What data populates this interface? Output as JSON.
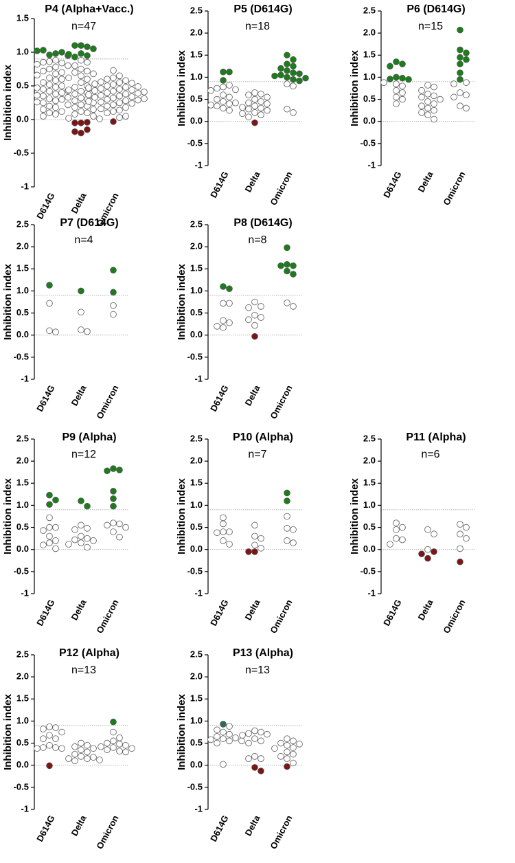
{
  "chart_data": [
    {
      "type": "strip",
      "title": "P4 (Alpha+Vacc.)",
      "subtitle": "n=47",
      "ylabel": "Inhibition index",
      "categories": [
        "D614G",
        "Delta",
        "Omicron"
      ],
      "values": [
        [
          0.96,
          0.98,
          1.03,
          1.0,
          1.02,
          0.95,
          0.88,
          0.86,
          0.85,
          0.84,
          0.82,
          0.8,
          0.78,
          0.75,
          0.72,
          0.7,
          0.68,
          0.66,
          0.62,
          0.58,
          0.55,
          0.52,
          0.5,
          0.48,
          0.47,
          0.45,
          0.43,
          0.42,
          0.4,
          0.38,
          0.36,
          0.35,
          0.33,
          0.31,
          0.3,
          0.28,
          0.26,
          0.25,
          0.22,
          0.2,
          0.18,
          0.15,
          0.12,
          0.1,
          0.08,
          0.05,
          0.6
        ],
        [
          1.1,
          1.08,
          1.1,
          1.05,
          0.98,
          0.95,
          0.93,
          0.97,
          -0.05,
          -0.04,
          -0.05,
          -0.2,
          -0.15,
          -0.18,
          0.88,
          0.85,
          0.8,
          0.75,
          0.72,
          0.7,
          0.68,
          0.65,
          0.6,
          0.55,
          0.5,
          0.48,
          0.46,
          0.42,
          0.4,
          0.38,
          0.35,
          0.32,
          0.3,
          0.28,
          0.25,
          0.22,
          0.2,
          0.18,
          0.15,
          0.12,
          0.1,
          0.08,
          0.05,
          0.02,
          0.01,
          0.62,
          0.44
        ],
        [
          -0.03,
          0.73,
          0.65,
          0.62,
          0.6,
          0.58,
          0.56,
          0.55,
          0.54,
          0.53,
          0.52,
          0.5,
          0.49,
          0.48,
          0.47,
          0.46,
          0.45,
          0.44,
          0.43,
          0.42,
          0.41,
          0.4,
          0.39,
          0.38,
          0.37,
          0.36,
          0.35,
          0.34,
          0.33,
          0.32,
          0.31,
          0.3,
          0.29,
          0.28,
          0.27,
          0.26,
          0.25,
          0.24,
          0.22,
          0.2,
          0.18,
          0.16,
          0.14,
          0.12,
          0.1,
          0.05,
          0.03
        ]
      ],
      "ylim": [
        -1,
        1.5
      ],
      "yticks": [
        -1.0,
        -0.5,
        {
          "value": 0,
          "label": "0.0"
        },
        0.5,
        {
          "value": 1,
          "label": "1.0"
        },
        1.5
      ],
      "threshold_high": 0.9,
      "threshold_low": 0,
      "colors": {
        "high": "#1b7d1b",
        "low": "#7d1416",
        "other": "#ffffff"
      }
    },
    {
      "type": "strip",
      "title": "P5 (D614G)",
      "subtitle": "n=18",
      "ylabel": "Inhibition index",
      "categories": [
        "D614G",
        "Delta",
        "Omicron"
      ],
      "values": [
        [
          1.12,
          1.12,
          0.93,
          0.82,
          0.78,
          0.75,
          0.72,
          0.7,
          0.6,
          0.55,
          0.5,
          0.45,
          0.42,
          0.4,
          0.37,
          0.35,
          0.3,
          0.25
        ],
        [
          -0.03,
          0.65,
          0.62,
          0.6,
          0.55,
          0.5,
          0.45,
          0.42,
          0.4,
          0.35,
          0.32,
          0.3,
          0.28,
          0.25,
          0.2,
          0.18,
          0.15,
          0.1
        ],
        [
          1.5,
          1.4,
          1.3,
          1.25,
          1.2,
          1.15,
          1.1,
          1.08,
          1.05,
          1.03,
          1.0,
          0.98,
          0.95,
          0.92,
          0.85,
          0.8,
          0.28,
          0.2
        ]
      ],
      "ylim": [
        -1,
        2.5
      ],
      "yticks": [
        -1.0,
        -0.5,
        {
          "value": 0,
          "label": "0.0"
        },
        0.5,
        {
          "value": 1,
          "label": "1.0"
        },
        1.5,
        {
          "value": 2,
          "label": "2.0"
        },
        2.5
      ],
      "threshold_high": 0.9,
      "threshold_low": 0,
      "colors": {
        "high": "#1b7d1b",
        "low": "#7d1416",
        "other": "#ffffff"
      }
    },
    {
      "type": "strip",
      "title": "P6 (D614G)",
      "subtitle": "n=15",
      "ylabel": "Inhibition index",
      "categories": [
        "D614G",
        "Delta",
        "Omicron"
      ],
      "values": [
        [
          1.35,
          1.3,
          1.25,
          1.0,
          0.98,
          0.96,
          0.95,
          0.88,
          0.85,
          0.8,
          0.7,
          0.65,
          0.55,
          0.5,
          0.4
        ],
        [
          0.82,
          0.78,
          0.7,
          0.62,
          0.58,
          0.55,
          0.5,
          0.45,
          0.4,
          0.35,
          0.3,
          0.25,
          0.2,
          0.15,
          0.05
        ],
        [
          2.07,
          1.62,
          1.55,
          1.45,
          1.4,
          1.3,
          1.1,
          0.95,
          0.88,
          0.65,
          0.6,
          0.55,
          0.35,
          0.3,
          0.85
        ]
      ],
      "ylim": [
        -1,
        2.5
      ],
      "yticks": [
        -1.0,
        -0.5,
        {
          "value": 0,
          "label": "0.0"
        },
        0.5,
        {
          "value": 1,
          "label": "1.0"
        },
        1.5,
        {
          "value": 2,
          "label": "2.0"
        },
        2.5
      ],
      "threshold_high": 0.9,
      "threshold_low": 0,
      "colors": {
        "high": "#1b7d1b",
        "low": "#7d1416",
        "other": "#ffffff"
      }
    },
    {
      "type": "strip",
      "title": "P7 (D614G)",
      "subtitle": "n=4",
      "ylabel": "Inhibition index",
      "categories": [
        "D614G",
        "Delta",
        "Omicron"
      ],
      "values": [
        [
          1.13,
          0.72,
          0.1,
          0.07
        ],
        [
          1.0,
          0.52,
          0.12,
          0.08
        ],
        [
          1.47,
          0.97,
          0.67,
          0.47
        ]
      ],
      "ylim": [
        -1,
        2.5
      ],
      "yticks": [
        -1.0,
        -0.5,
        {
          "value": 0,
          "label": "0.0"
        },
        0.5,
        {
          "value": 1,
          "label": "1.0"
        },
        1.5,
        {
          "value": 2,
          "label": "2.0"
        },
        2.5
      ],
      "threshold_high": 0.9,
      "threshold_low": 0,
      "colors": {
        "high": "#1b7d1b",
        "low": "#7d1416",
        "other": "#ffffff"
      }
    },
    {
      "type": "strip",
      "title": "P8 (D614G)",
      "subtitle": "n=8",
      "ylabel": "Inhibition index",
      "categories": [
        "D614G",
        "Delta",
        "Omicron"
      ],
      "values": [
        [
          1.1,
          1.05,
          0.72,
          0.72,
          0.33,
          0.28,
          0.2,
          0.17
        ],
        [
          0.75,
          0.65,
          0.62,
          0.45,
          0.4,
          0.35,
          0.22,
          -0.03
        ],
        [
          1.98,
          1.6,
          1.57,
          1.57,
          1.45,
          1.38,
          0.73,
          0.65
        ]
      ],
      "ylim": [
        -1,
        2.5
      ],
      "yticks": [
        -1.0,
        -0.5,
        {
          "value": 0,
          "label": "0.0"
        },
        0.5,
        {
          "value": 1,
          "label": "1.0"
        },
        1.5,
        {
          "value": 2,
          "label": "2.0"
        },
        2.5
      ],
      "threshold_high": 0.9,
      "threshold_low": 0,
      "colors": {
        "high": "#1b7d1b",
        "low": "#7d1416",
        "other": "#ffffff"
      }
    },
    {
      "type": "strip",
      "title": "P9 (Alpha)",
      "subtitle": "n=12",
      "ylabel": "Inhibition index",
      "categories": [
        "D614G",
        "Delta",
        "Omicron"
      ],
      "values": [
        [
          1.23,
          1.12,
          1.02,
          0.72,
          0.5,
          0.5,
          0.43,
          0.3,
          0.2,
          0.15,
          0.1,
          0.02
        ],
        [
          1.1,
          0.98,
          0.55,
          0.48,
          0.45,
          0.3,
          0.25,
          0.22,
          0.2,
          0.15,
          0.12,
          0.05
        ],
        [
          1.83,
          1.8,
          1.78,
          1.32,
          1.15,
          0.98,
          0.6,
          0.58,
          0.55,
          0.5,
          0.4,
          0.28
        ]
      ],
      "ylim": [
        -1,
        2.5
      ],
      "yticks": [
        -1.0,
        -0.5,
        {
          "value": 0,
          "label": "0.0"
        },
        0.5,
        {
          "value": 1,
          "label": "1.0"
        },
        1.5,
        {
          "value": 2,
          "label": "2.0"
        },
        2.5
      ],
      "threshold_high": 0.9,
      "threshold_low": 0,
      "colors": {
        "high": "#1b7d1b",
        "low": "#7d1416",
        "other": "#ffffff"
      }
    },
    {
      "type": "strip",
      "title": "P10 (Alpha)",
      "subtitle": "n=7",
      "ylabel": "Inhibition index",
      "categories": [
        "D614G",
        "Delta",
        "Omicron"
      ],
      "values": [
        [
          0.72,
          0.58,
          0.4,
          0.4,
          0.38,
          0.2,
          0.12
        ],
        [
          0.55,
          0.3,
          0.25,
          0.1,
          0.03,
          -0.05,
          -0.05
        ],
        [
          1.28,
          1.1,
          0.75,
          0.48,
          0.45,
          0.2,
          0.15
        ]
      ],
      "ylim": [
        -1,
        2.5
      ],
      "yticks": [
        -1.0,
        -0.5,
        {
          "value": 0,
          "label": "0.0"
        },
        0.5,
        {
          "value": 1,
          "label": "1.0"
        },
        1.5,
        {
          "value": 2,
          "label": "2.0"
        },
        2.5
      ],
      "threshold_high": 0.9,
      "threshold_low": 0,
      "colors": {
        "high": "#1b7d1b",
        "low": "#7d1416",
        "other": "#ffffff"
      }
    },
    {
      "type": "strip",
      "title": "P11 (Alpha)",
      "subtitle": "n=6",
      "ylabel": "Inhibition index",
      "categories": [
        "D614G",
        "Delta",
        "Omicron"
      ],
      "values": [
        [
          0.6,
          0.5,
          0.45,
          0.25,
          0.22,
          0.12
        ],
        [
          0.45,
          0.35,
          0.0,
          -0.05,
          -0.1,
          -0.2
        ],
        [
          0.57,
          0.5,
          0.35,
          0.25,
          0.02,
          -0.28
        ]
      ],
      "ylim": [
        -1,
        2.5
      ],
      "yticks": [
        -1.0,
        -0.5,
        {
          "value": 0,
          "label": "0.0"
        },
        0.5,
        {
          "value": 1,
          "label": "1.0"
        },
        1.5,
        {
          "value": 2,
          "label": "2.0"
        },
        2.5
      ],
      "threshold_high": 0.9,
      "threshold_low": 0,
      "colors": {
        "high": "#1b7d1b",
        "low": "#7d1416",
        "other": "#ffffff"
      }
    },
    {
      "type": "strip",
      "title": "P12 (Alpha)",
      "subtitle": "n=13",
      "ylabel": "Inhibition index",
      "categories": [
        "D614G",
        "Delta",
        "Omicron"
      ],
      "values": [
        [
          0.87,
          0.85,
          0.82,
          0.75,
          0.68,
          0.6,
          0.6,
          0.45,
          0.4,
          0.4,
          0.38,
          0.38,
          -0.01
        ],
        [
          0.5,
          0.45,
          0.42,
          0.38,
          0.35,
          0.3,
          0.25,
          0.2,
          0.18,
          0.15,
          0.15,
          0.12,
          0.1
        ],
        [
          0.98,
          0.75,
          0.62,
          0.55,
          0.5,
          0.48,
          0.45,
          0.42,
          0.4,
          0.38,
          0.35,
          0.32,
          0.3
        ]
      ],
      "ylim": [
        -1,
        2.5
      ],
      "yticks": [
        -1.0,
        -0.5,
        {
          "value": 0,
          "label": "0.0"
        },
        0.5,
        {
          "value": 1,
          "label": "1.0"
        },
        1.5,
        {
          "value": 2,
          "label": "2.0"
        },
        2.5
      ],
      "threshold_high": 0.9,
      "threshold_low": 0,
      "colors": {
        "high": "#1b7d1b",
        "low": "#7d1416",
        "other": "#ffffff"
      }
    },
    {
      "type": "strip",
      "title": "P13 (Alpha)",
      "subtitle": "n=13",
      "ylabel": "Inhibition index",
      "categories": [
        "D614G",
        "Delta",
        "Omicron"
      ],
      "values": [
        [
          0.93,
          0.88,
          0.8,
          0.75,
          0.7,
          0.65,
          0.62,
          0.6,
          0.58,
          0.55,
          0.55,
          0.5,
          0.02
        ],
        [
          0.78,
          0.75,
          0.72,
          0.7,
          0.68,
          0.6,
          0.55,
          0.5,
          0.2,
          0.15,
          0.15,
          -0.05,
          -0.13
        ],
        [
          0.6,
          0.55,
          0.5,
          0.48,
          0.45,
          0.4,
          0.38,
          0.3,
          0.25,
          0.2,
          0.15,
          0.05,
          -0.03
        ]
      ],
      "ylim": [
        -1,
        2.5
      ],
      "yticks": [
        -1.0,
        -0.5,
        {
          "value": 0,
          "label": "0.0"
        },
        0.5,
        {
          "value": 1,
          "label": "1.0"
        },
        1.5,
        {
          "value": 2,
          "label": "2.0"
        },
        2.5
      ],
      "threshold_high": 0.9,
      "threshold_low": 0,
      "colors": {
        "high": "#2a6e4e",
        "low": "#7d1416",
        "other": "#ffffff"
      }
    }
  ]
}
